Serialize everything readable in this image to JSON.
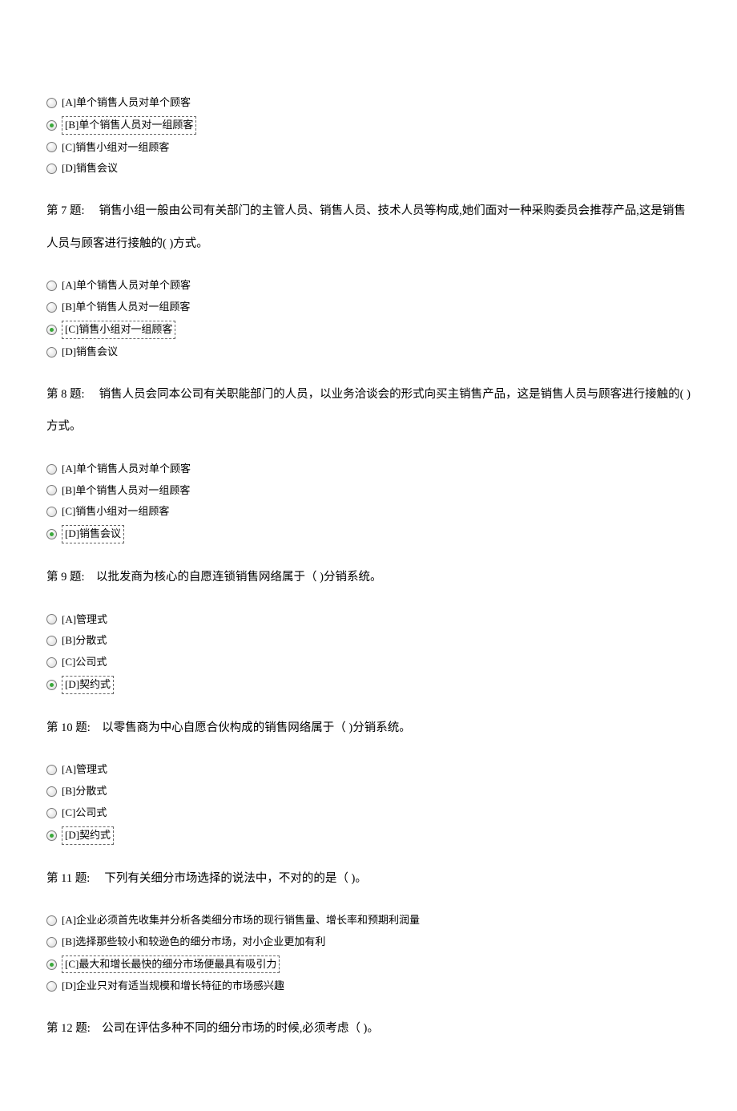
{
  "colors": {
    "text": "#000000",
    "background": "#ffffff",
    "radio_border": "#7a7a7a",
    "radio_selected": "#3aa83a",
    "highlight_border": "#666666"
  },
  "typography": {
    "body_fontsize": 14,
    "option_fontsize": 13,
    "question_fontsize": 14.5,
    "font_family": "SimSun"
  },
  "q6_options": {
    "a": "[A]单个销售人员对单个顾客",
    "b": "[B]单个销售人员对一组顾客",
    "c": "[C]销售小组对一组顾客",
    "d": "[D]销售会议",
    "selected": "b"
  },
  "q7": {
    "text": "第 7 题:　 销售小组一般由公司有关部门的主管人员、销售人员、技术人员等构成,她们面对一种采购委员会推荐产品,这是销售人员与顾客进行接触的(    )方式。",
    "a": "[A]单个销售人员对单个顾客",
    "b": "[B]单个销售人员对一组顾客",
    "c": "[C]销售小组对一组顾客",
    "d": "[D]销售会议",
    "selected": "c"
  },
  "q8": {
    "text": "第 8 题:　  销售人员会同本公司有关职能部门的人员，以业务洽谈会的形式向买主销售产品，这是销售人员与顾客进行接触的(    )方式。",
    "a": "[A]单个销售人员对单个顾客",
    "b": "[B]单个销售人员对一组顾客",
    "c": "[C]销售小组对一组顾客",
    "d": "[D]销售会议",
    "selected": "d"
  },
  "q9": {
    "text": "第 9 题:　以批发商为核心的自愿连锁销售网络属于（    )分销系统。",
    "a": "[A]管理式",
    "b": "[B]分散式",
    "c": "[C]公司式",
    "d": "[D]契约式",
    "selected": "d"
  },
  "q10": {
    "text": "第 10 题:　以零售商为中心自愿合伙构成的销售网络属于（    )分销系统。",
    "a": "[A]管理式",
    "b": "[B]分散式",
    "c": "[C]公司式",
    "d": "[D]契约式",
    "selected": "d"
  },
  "q11": {
    "text": "第 11 题:　  下列有关细分市场选择的说法中，不对的的是（    )。",
    "a": "[A]企业必须首先收集并分析各类细分市场的现行销售量、增长率和预期利润量",
    "b": "[B]选择那些较小和较逊色的细分市场，对小企业更加有利",
    "c": "[C]最大和增长最快的细分市场便最具有吸引力",
    "d": "[D]企业只对有适当规模和增长特征的市场感兴趣",
    "selected": "c"
  },
  "q12": {
    "text": "第 12 题:　公司在评估多种不同的细分市场的时候,必须考虑（    )。"
  }
}
